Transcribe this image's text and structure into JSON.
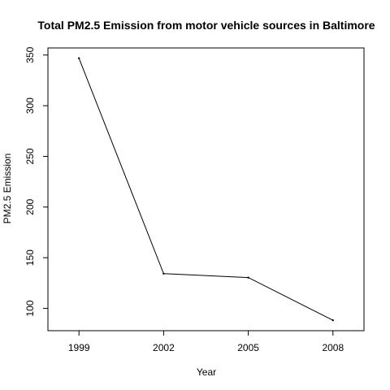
{
  "chart_data": {
    "type": "line",
    "title": "Total PM2.5 Emission from motor vehicle sources in Baltimore",
    "xlabel": "Year",
    "ylabel": "PM2.5 Emission",
    "x": [
      1999,
      2002,
      2005,
      2008
    ],
    "series": [
      {
        "values": [
          346.8,
          134.3,
          130.4,
          88.3
        ]
      }
    ],
    "xticks": [
      "1999",
      "2002",
      "2005",
      "2008"
    ],
    "yticks": [
      "100",
      "150",
      "200",
      "250",
      "300",
      "350"
    ],
    "xlim": [
      1997.9,
      2009.1
    ],
    "ylim": [
      78,
      357
    ],
    "grid": false,
    "legend": "none",
    "line_color": "#000000"
  }
}
